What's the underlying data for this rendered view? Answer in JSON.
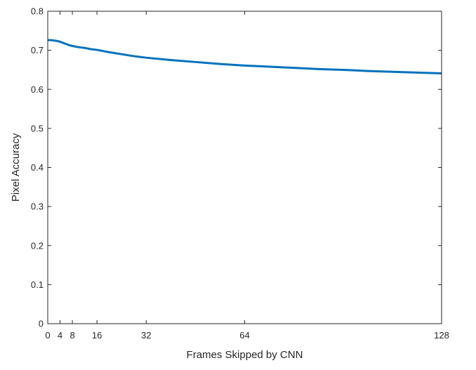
{
  "chart_data": {
    "type": "line",
    "title": "",
    "xlabel": "Frames Skipped by CNN",
    "ylabel": "Pixel Accuracy",
    "xlim": [
      0,
      128
    ],
    "ylim": [
      0,
      0.8
    ],
    "x_ticks": [
      0,
      4,
      8,
      16,
      32,
      64,
      128
    ],
    "x_tick_labels": [
      "0",
      "4",
      "8",
      "16",
      "32",
      "64",
      "128"
    ],
    "y_ticks": [
      0,
      0.1,
      0.2,
      0.3,
      0.4,
      0.5,
      0.6,
      0.7,
      0.8
    ],
    "y_tick_labels": [
      "0",
      "0.1",
      "0.2",
      "0.3",
      "0.4",
      "0.5",
      "0.6",
      "0.7",
      "0.8"
    ],
    "grid": false,
    "series": [
      {
        "color": "#0072bd",
        "x": [
          0,
          1,
          2,
          3,
          4,
          5,
          6,
          7,
          8,
          10,
          12,
          14,
          16,
          20,
          24,
          28,
          32,
          40,
          48,
          56,
          64,
          72,
          80,
          88,
          96,
          104,
          112,
          120,
          128
        ],
        "y": [
          0.726,
          0.726,
          0.725,
          0.724,
          0.722,
          0.719,
          0.716,
          0.713,
          0.711,
          0.708,
          0.706,
          0.703,
          0.701,
          0.695,
          0.69,
          0.685,
          0.681,
          0.675,
          0.67,
          0.665,
          0.661,
          0.658,
          0.655,
          0.652,
          0.65,
          0.647,
          0.645,
          0.643,
          0.641
        ]
      }
    ]
  }
}
